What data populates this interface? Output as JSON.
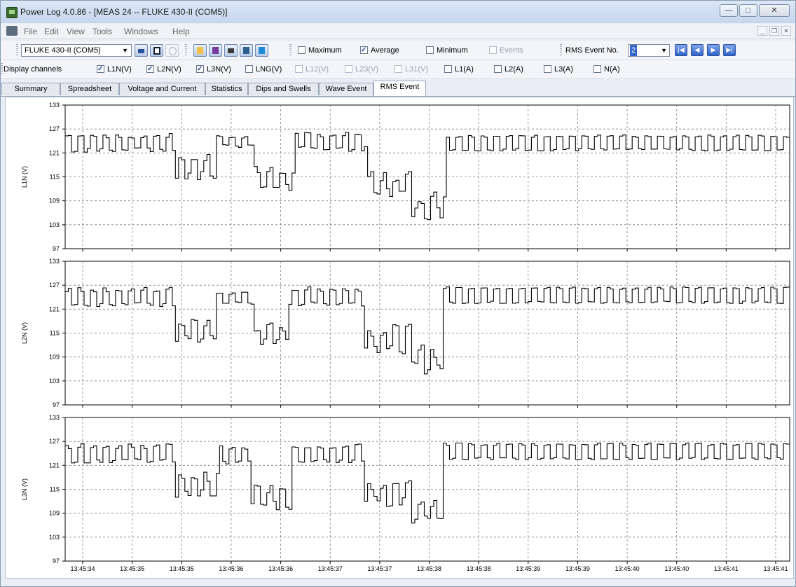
{
  "window": {
    "title": "Power Log 4.0.86 - [MEAS 24 -- FLUKE 430-II (COM5)]",
    "controls": {
      "minimize": "—",
      "maximize": "□",
      "close": "✕"
    }
  },
  "menu": {
    "items": [
      "File",
      "Edit",
      "View",
      "Tools",
      "Windows",
      "Help"
    ],
    "mdi": {
      "minimize": "_",
      "restore": "❐",
      "close": "✕"
    }
  },
  "toolbar1": {
    "device": "FLUKE 430-II (COM5)",
    "checkboxes": [
      {
        "label": "Maximum",
        "checked": false,
        "enabled": true
      },
      {
        "label": "Average",
        "checked": true,
        "enabled": true
      },
      {
        "label": "Minimum",
        "checked": false,
        "enabled": true
      },
      {
        "label": "Events",
        "checked": false,
        "enabled": false
      }
    ],
    "rms_event_label": "RMS Event No.",
    "rms_event_value": "2"
  },
  "toolbar2": {
    "label": "Display channels",
    "channels": [
      {
        "label": "L1N(V)",
        "checked": true,
        "enabled": true
      },
      {
        "label": "L2N(V)",
        "checked": true,
        "enabled": true
      },
      {
        "label": "L3N(V)",
        "checked": true,
        "enabled": true
      },
      {
        "label": "LNG(V)",
        "checked": false,
        "enabled": true
      },
      {
        "label": "L12(V)",
        "checked": false,
        "enabled": false
      },
      {
        "label": "L23(V)",
        "checked": false,
        "enabled": false
      },
      {
        "label": "L31(V)",
        "checked": false,
        "enabled": false
      },
      {
        "label": "L1(A)",
        "checked": false,
        "enabled": true
      },
      {
        "label": "L2(A)",
        "checked": false,
        "enabled": true
      },
      {
        "label": "L3(A)",
        "checked": false,
        "enabled": true
      },
      {
        "label": "N(A)",
        "checked": false,
        "enabled": true
      }
    ]
  },
  "tabs": [
    {
      "label": "Summary",
      "active": false
    },
    {
      "label": "Spreadsheet",
      "active": false
    },
    {
      "label": "Voltage and Current",
      "active": false
    },
    {
      "label": "Statistics",
      "active": false
    },
    {
      "label": "Dips and Swells",
      "active": false
    },
    {
      "label": "Wave Event",
      "active": false
    },
    {
      "label": "RMS Event",
      "active": true
    }
  ],
  "colors": {
    "trace": "#000000",
    "grid": "#808080",
    "accent": "#3366cc"
  },
  "chart_data": [
    {
      "type": "line",
      "ylabel": "L1N (V)",
      "ylim": [
        97,
        133
      ],
      "yticks": [
        97,
        103,
        109,
        115,
        121,
        127,
        133
      ],
      "x_tick_labels": [
        "13:45:34",
        "13:45:35",
        "13:45:35",
        "13:45:36",
        "13:45:36",
        "13:45:37",
        "13:45:37",
        "13:45:38",
        "13:45:38",
        "13:45:39",
        "13:45:39",
        "13:45:40",
        "13:45:40",
        "13:45:41",
        "13:45:41"
      ],
      "segments": [
        {
          "from": 0.0,
          "to": 0.15,
          "level": 123.5,
          "amplitude": 1.8,
          "jitter": 0.6
        },
        {
          "from": 0.15,
          "to": 0.205,
          "level": 117.5,
          "amplitude": 2.2,
          "jitter": 1.2
        },
        {
          "from": 0.205,
          "to": 0.26,
          "level": 124.0,
          "amplitude": 1.2,
          "jitter": 0.5
        },
        {
          "from": 0.26,
          "to": 0.315,
          "level": 114.5,
          "amplitude": 2.0,
          "jitter": 1.2
        },
        {
          "from": 0.315,
          "to": 0.415,
          "level": 123.8,
          "amplitude": 1.8,
          "jitter": 0.6
        },
        {
          "from": 0.415,
          "to": 0.475,
          "level": 113.0,
          "amplitude": 2.2,
          "jitter": 1.5
        },
        {
          "from": 0.475,
          "to": 0.525,
          "level": 108.0,
          "amplitude": 2.0,
          "jitter": 1.8
        },
        {
          "from": 0.525,
          "to": 1.0,
          "level": 123.5,
          "amplitude": 1.7,
          "jitter": 0.3
        }
      ]
    },
    {
      "type": "line",
      "ylabel": "L2N (V)",
      "ylim": [
        97,
        133
      ],
      "yticks": [
        97,
        103,
        109,
        115,
        121,
        127,
        133
      ],
      "x_tick_labels": [
        "13:45:34",
        "13:45:35",
        "13:45:35",
        "13:45:36",
        "13:45:36",
        "13:45:37",
        "13:45:37",
        "13:45:38",
        "13:45:38",
        "13:45:39",
        "13:45:39",
        "13:45:40",
        "13:45:40",
        "13:45:41",
        "13:45:41"
      ],
      "segments": [
        {
          "from": 0.0,
          "to": 0.15,
          "level": 124.0,
          "amplitude": 1.9,
          "jitter": 0.6
        },
        {
          "from": 0.15,
          "to": 0.205,
          "level": 115.5,
          "amplitude": 2.2,
          "jitter": 1.2
        },
        {
          "from": 0.205,
          "to": 0.26,
          "level": 123.8,
          "amplitude": 1.4,
          "jitter": 0.6
        },
        {
          "from": 0.26,
          "to": 0.305,
          "level": 114.5,
          "amplitude": 2.0,
          "jitter": 1.2
        },
        {
          "from": 0.305,
          "to": 0.41,
          "level": 124.2,
          "amplitude": 1.8,
          "jitter": 0.6
        },
        {
          "from": 0.41,
          "to": 0.475,
          "level": 113.5,
          "amplitude": 2.2,
          "jitter": 1.5
        },
        {
          "from": 0.475,
          "to": 0.52,
          "level": 108.5,
          "amplitude": 2.0,
          "jitter": 1.8
        },
        {
          "from": 0.52,
          "to": 1.0,
          "level": 124.5,
          "amplitude": 1.8,
          "jitter": 0.3
        }
      ]
    },
    {
      "type": "line",
      "ylabel": "L3N (V)",
      "ylim": [
        97,
        133
      ],
      "yticks": [
        97,
        103,
        109,
        115,
        121,
        127,
        133
      ],
      "x_tick_labels": [
        "13:45:34",
        "13:45:35",
        "13:45:35",
        "13:45:36",
        "13:45:36",
        "13:45:37",
        "13:45:37",
        "13:45:38",
        "13:45:38",
        "13:45:39",
        "13:45:39",
        "13:45:40",
        "13:45:40",
        "13:45:41",
        "13:45:41"
      ],
      "segments": [
        {
          "from": 0.0,
          "to": 0.15,
          "level": 124.0,
          "amplitude": 1.8,
          "jitter": 0.6
        },
        {
          "from": 0.15,
          "to": 0.21,
          "level": 116.0,
          "amplitude": 2.2,
          "jitter": 1.2
        },
        {
          "from": 0.21,
          "to": 0.255,
          "level": 123.5,
          "amplitude": 1.8,
          "jitter": 0.6
        },
        {
          "from": 0.255,
          "to": 0.31,
          "level": 113.0,
          "amplitude": 2.2,
          "jitter": 1.2
        },
        {
          "from": 0.31,
          "to": 0.41,
          "level": 124.0,
          "amplitude": 1.8,
          "jitter": 0.6
        },
        {
          "from": 0.41,
          "to": 0.475,
          "level": 114.0,
          "amplitude": 2.0,
          "jitter": 1.5
        },
        {
          "from": 0.475,
          "to": 0.52,
          "level": 109.0,
          "amplitude": 2.0,
          "jitter": 1.6
        },
        {
          "from": 0.52,
          "to": 1.0,
          "level": 124.5,
          "amplitude": 1.8,
          "jitter": 0.3
        }
      ]
    }
  ]
}
